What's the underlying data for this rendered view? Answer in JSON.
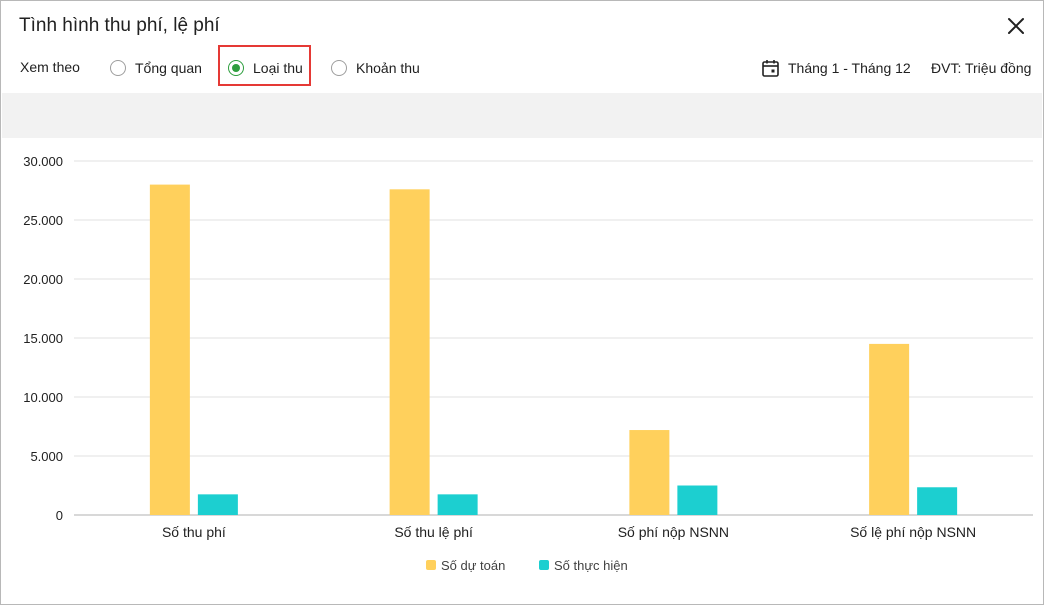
{
  "dialog": {
    "title": "Tình hình thu phí, lệ phí",
    "close_icon": "close-icon"
  },
  "filter": {
    "label": "Xem theo",
    "options": [
      {
        "label": "Tổng quan",
        "selected": false
      },
      {
        "label": "Loại thu",
        "selected": true
      },
      {
        "label": "Khoản thu",
        "selected": false
      }
    ],
    "period_icon": "calendar-icon",
    "period": "Tháng 1 - Tháng 12",
    "unit": "ĐVT: Triệu đồng"
  },
  "colors": {
    "accent": "#2e9e3e",
    "highlight": "#e53935",
    "series_du_toan": "#ffd05c",
    "series_thuc_hien": "#1ccfd0"
  },
  "chart_data": {
    "type": "bar",
    "categories": [
      "Số thu phí",
      "Số thu lệ phí",
      "Số phí nộp NSNN",
      "Số lệ phí nộp NSNN"
    ],
    "series": [
      {
        "name": "Số dự toán",
        "values": [
          28000,
          27600,
          7200,
          14500
        ]
      },
      {
        "name": "Số thực hiện",
        "values": [
          1750,
          1750,
          2500,
          2350
        ]
      }
    ],
    "ylim": [
      0,
      30000
    ],
    "yticks": [
      0,
      5000,
      10000,
      15000,
      20000,
      25000,
      30000
    ],
    "ytick_labels": [
      "0",
      "5.000",
      "10.000",
      "15.000",
      "20.000",
      "25.000",
      "30.000"
    ],
    "grid": true,
    "legend_position": "bottom-center"
  }
}
